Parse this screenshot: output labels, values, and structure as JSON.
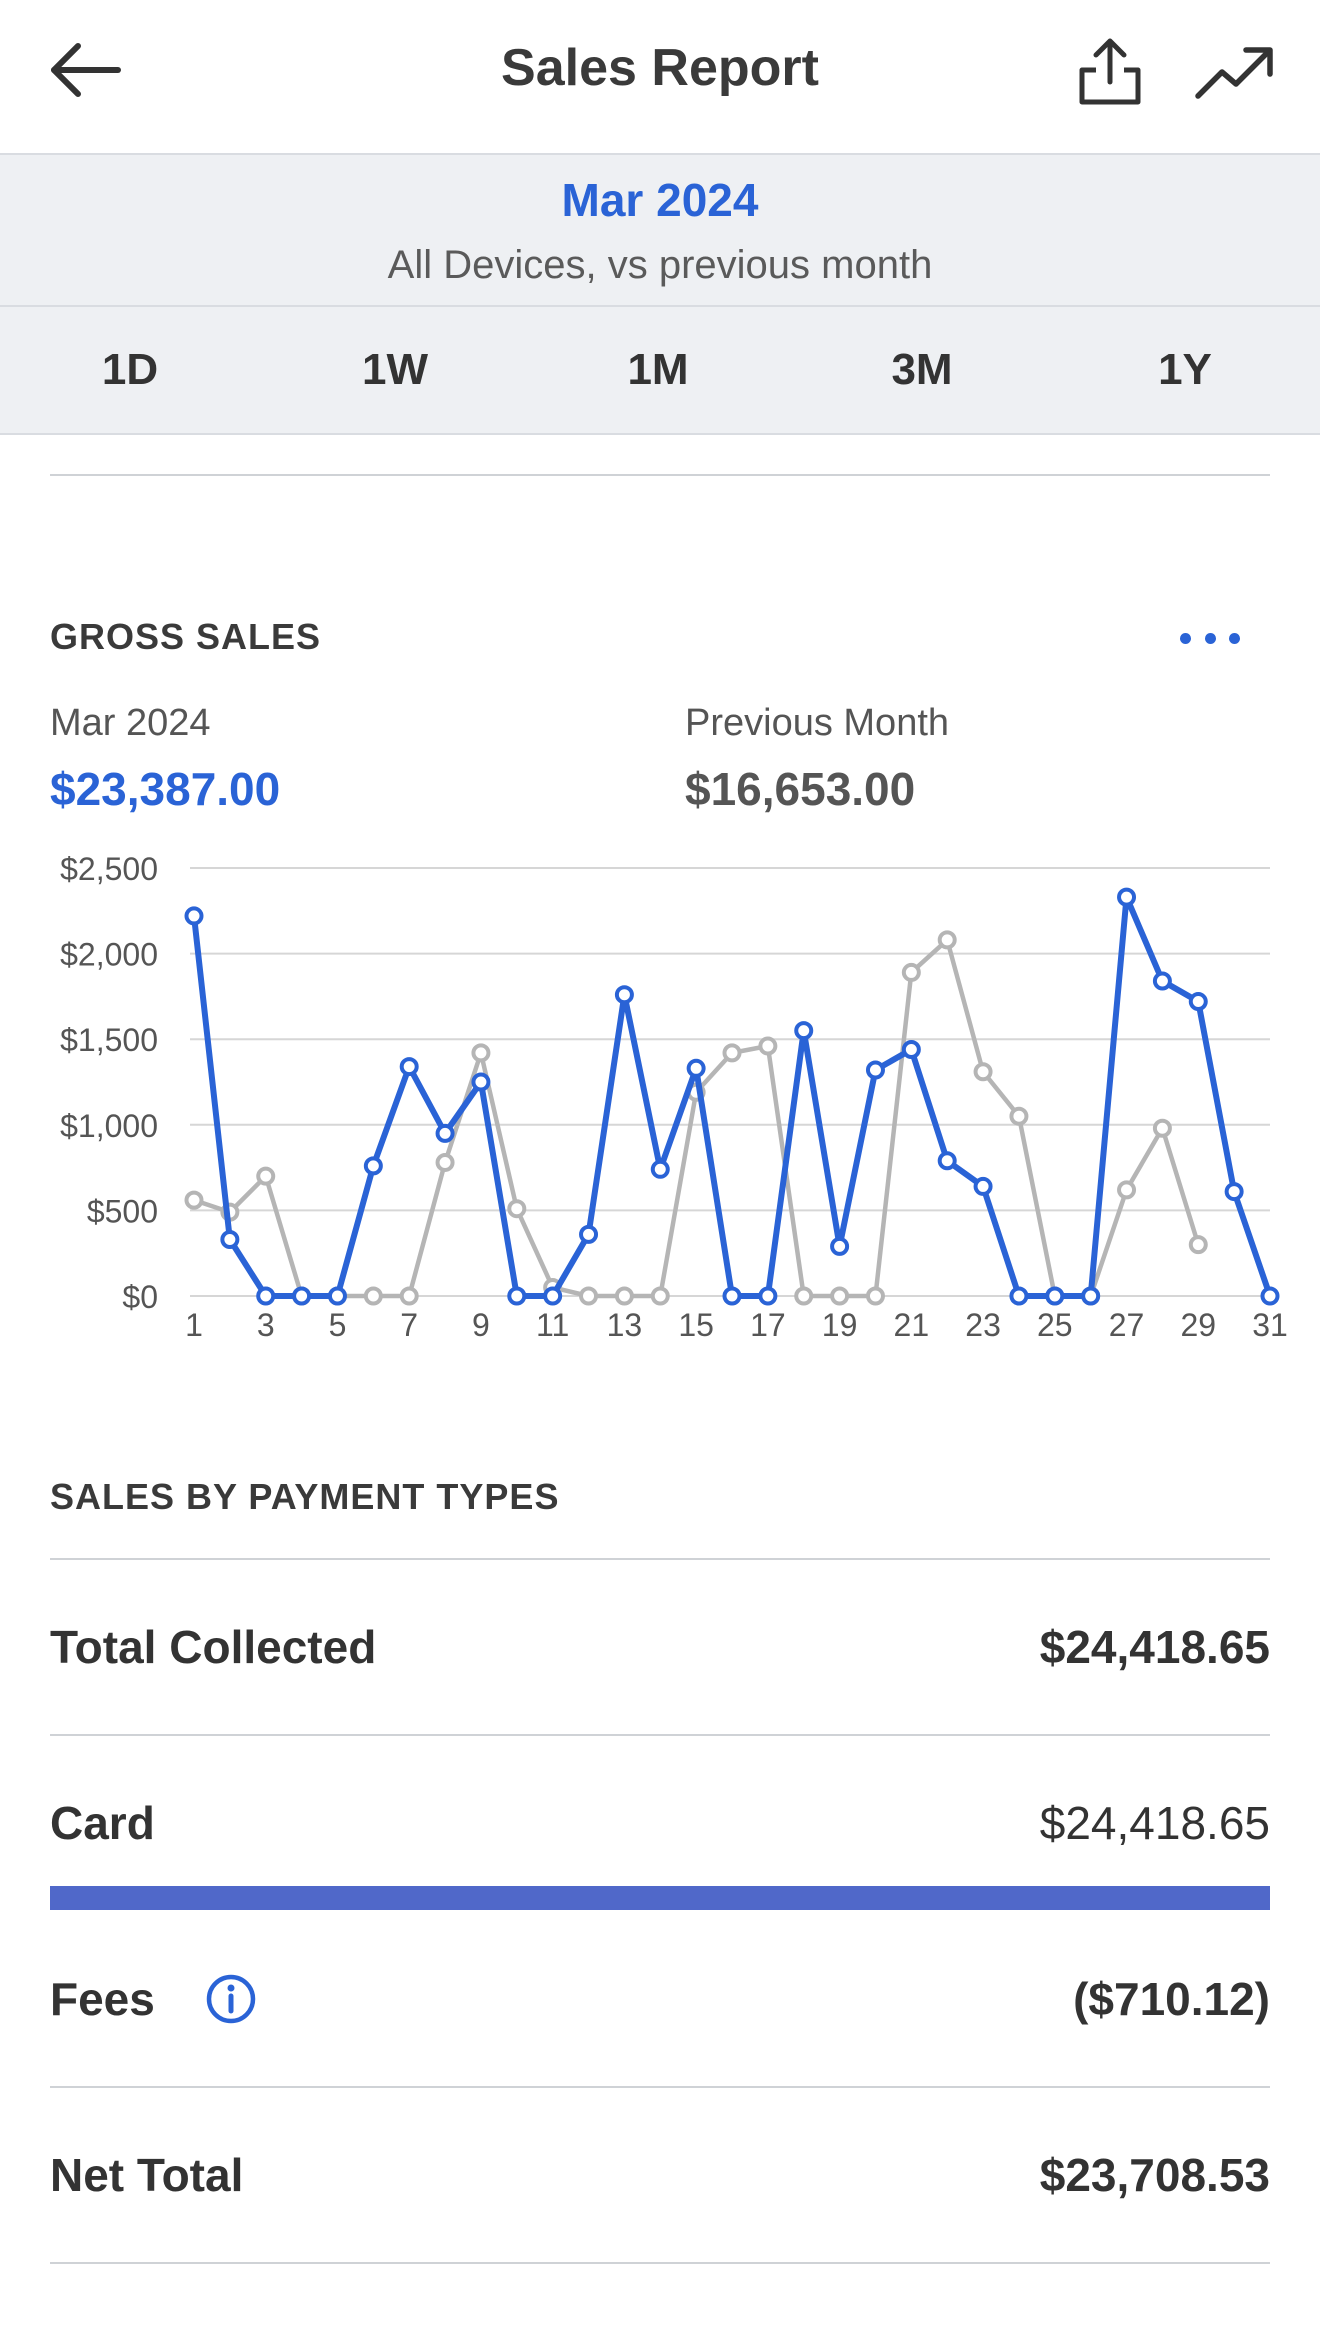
{
  "header": {
    "title": "Sales Report",
    "back_icon": "arrow-left-icon",
    "share_icon": "share-icon",
    "trend_icon": "trend-up-icon"
  },
  "period": {
    "month": "Mar 2024",
    "subtitle": "All Devices, vs previous month"
  },
  "tabs": [
    {
      "label": "1D"
    },
    {
      "label": "1W"
    },
    {
      "label": "1M"
    },
    {
      "label": "3M"
    },
    {
      "label": "1Y"
    }
  ],
  "gross_sales": {
    "title": "GROSS SALES",
    "current_label": "Mar 2024",
    "current_value": "$23,387.00",
    "previous_label": "Previous Month",
    "previous_value": "$16,653.00"
  },
  "colors": {
    "accent": "#2a63d6",
    "previous_series": "#b5b5b5",
    "card_bar": "#5068c9"
  },
  "chart_data": {
    "type": "line",
    "ylim": [
      0,
      2500
    ],
    "y_ticks": [
      "$0",
      "$500",
      "$1,000",
      "$1,500",
      "$2,000",
      "$2,500"
    ],
    "x_tick_labels": [
      "1",
      "3",
      "5",
      "7",
      "9",
      "11",
      "13",
      "15",
      "17",
      "19",
      "21",
      "23",
      "25",
      "27",
      "29",
      "31"
    ],
    "grid": true,
    "x": [
      1,
      2,
      3,
      4,
      5,
      6,
      7,
      8,
      9,
      10,
      11,
      12,
      13,
      14,
      15,
      16,
      17,
      18,
      19,
      20,
      21,
      22,
      23,
      24,
      25,
      26,
      27,
      28,
      29,
      30,
      31
    ],
    "series": [
      {
        "values": [
          2220,
          330,
          0,
          0,
          0,
          760,
          1340,
          950,
          1250,
          0,
          0,
          360,
          1760,
          740,
          1330,
          0,
          0,
          1550,
          290,
          1320,
          1440,
          790,
          640,
          0,
          0,
          0,
          2330,
          1840,
          1720,
          610,
          0
        ]
      },
      {
        "values": [
          560,
          490,
          700,
          0,
          0,
          0,
          0,
          780,
          1420,
          510,
          50,
          0,
          0,
          0,
          1190,
          1420,
          1460,
          0,
          0,
          0,
          1890,
          2080,
          1310,
          1050,
          0,
          0,
          620,
          980,
          300,
          null,
          null
        ]
      }
    ]
  },
  "payment_types": {
    "title": "SALES BY PAYMENT TYPES",
    "total_collected_label": "Total Collected",
    "total_collected_value": "$24,418.65",
    "card_label": "Card",
    "card_value": "$24,418.65",
    "card_share": 1.0,
    "fees_label": "Fees",
    "fees_value": "($710.12)",
    "info_icon": "info-icon",
    "net_total_label": "Net Total",
    "net_total_value": "$23,708.53"
  }
}
